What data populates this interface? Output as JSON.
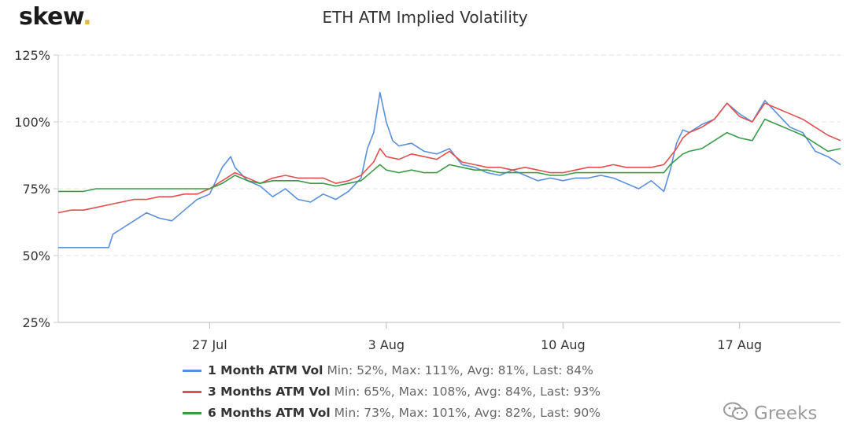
{
  "brand": {
    "logo_text": "skew",
    "logo_dot": "."
  },
  "watermark": {
    "text": "Greeks",
    "icon": "wechat-icon"
  },
  "chart_data": {
    "type": "line",
    "title": "ETH ATM Implied Volatility",
    "xlabel": "",
    "ylabel": "",
    "x_tick_labels": [
      "27 Jul",
      "3 Aug",
      "10 Aug",
      "17 Aug"
    ],
    "x_ticks": [
      "2020-07-27",
      "2020-08-03",
      "2020-08-10",
      "2020-08-17"
    ],
    "x_range": [
      "2020-07-21",
      "2020-08-21"
    ],
    "y_tick_labels": [
      "125%",
      "100%",
      "75%",
      "50%",
      "25%"
    ],
    "y_ticks": [
      125,
      100,
      75,
      50,
      25
    ],
    "ylim": [
      25,
      125
    ],
    "grid": "horizontal dashed",
    "legend_position": "bottom",
    "series": [
      {
        "name": "1 Month ATM Vol",
        "stats": "Min: 52%, Max: 111%, Avg: 81%, Last: 84%",
        "color": "#5b8fd9",
        "points": [
          [
            "2020-07-21",
            53
          ],
          [
            "2020-07-21T12:00",
            53
          ],
          [
            "2020-07-22",
            53
          ],
          [
            "2020-07-22T12:00",
            53
          ],
          [
            "2020-07-23",
            53
          ],
          [
            "2020-07-23T04:00",
            58
          ],
          [
            "2020-07-23T12:00",
            60
          ],
          [
            "2020-07-24",
            63
          ],
          [
            "2020-07-24T12:00",
            66
          ],
          [
            "2020-07-25",
            64
          ],
          [
            "2020-07-25T12:00",
            63
          ],
          [
            "2020-07-26",
            67
          ],
          [
            "2020-07-26T12:00",
            71
          ],
          [
            "2020-07-27",
            73
          ],
          [
            "2020-07-27T06:00",
            78
          ],
          [
            "2020-07-27T12:00",
            83
          ],
          [
            "2020-07-27T20:00",
            87
          ],
          [
            "2020-07-28",
            83
          ],
          [
            "2020-07-28T12:00",
            78
          ],
          [
            "2020-07-29",
            76
          ],
          [
            "2020-07-29T12:00",
            72
          ],
          [
            "2020-07-30",
            75
          ],
          [
            "2020-07-30T12:00",
            71
          ],
          [
            "2020-07-31",
            70
          ],
          [
            "2020-07-31T12:00",
            73
          ],
          [
            "2020-08-01",
            71
          ],
          [
            "2020-08-01T12:00",
            74
          ],
          [
            "2020-08-02",
            79
          ],
          [
            "2020-08-02T06:00",
            90
          ],
          [
            "2020-08-02T12:00",
            96
          ],
          [
            "2020-08-02T18:00",
            111
          ],
          [
            "2020-08-03",
            100
          ],
          [
            "2020-08-03T06:00",
            93
          ],
          [
            "2020-08-03T12:00",
            91
          ],
          [
            "2020-08-04",
            92
          ],
          [
            "2020-08-04T12:00",
            89
          ],
          [
            "2020-08-05",
            88
          ],
          [
            "2020-08-05T12:00",
            90
          ],
          [
            "2020-08-06",
            84
          ],
          [
            "2020-08-06T12:00",
            83
          ],
          [
            "2020-08-07",
            81
          ],
          [
            "2020-08-07T12:00",
            80
          ],
          [
            "2020-08-08",
            82
          ],
          [
            "2020-08-08T12:00",
            80
          ],
          [
            "2020-08-09",
            78
          ],
          [
            "2020-08-09T12:00",
            79
          ],
          [
            "2020-08-10",
            78
          ],
          [
            "2020-08-10T12:00",
            79
          ],
          [
            "2020-08-11",
            79
          ],
          [
            "2020-08-11T12:00",
            80
          ],
          [
            "2020-08-12",
            79
          ],
          [
            "2020-08-12T12:00",
            77
          ],
          [
            "2020-08-13",
            75
          ],
          [
            "2020-08-13T12:00",
            78
          ],
          [
            "2020-08-14",
            74
          ],
          [
            "2020-08-14T06:00",
            82
          ],
          [
            "2020-08-14T12:00",
            92
          ],
          [
            "2020-08-14T18:00",
            97
          ],
          [
            "2020-08-15",
            96
          ],
          [
            "2020-08-15T12:00",
            99
          ],
          [
            "2020-08-16",
            101
          ],
          [
            "2020-08-16T12:00",
            107
          ],
          [
            "2020-08-17",
            103
          ],
          [
            "2020-08-17T12:00",
            100
          ],
          [
            "2020-08-18",
            108
          ],
          [
            "2020-08-18T12:00",
            103
          ],
          [
            "2020-08-19",
            98
          ],
          [
            "2020-08-19T12:00",
            96
          ],
          [
            "2020-08-20",
            89
          ],
          [
            "2020-08-20T12:00",
            87
          ],
          [
            "2020-08-21",
            84
          ]
        ]
      },
      {
        "name": "3 Months ATM Vol",
        "stats": "Min: 65%, Max: 108%, Avg: 84%, Last: 93%",
        "color": "#e0504f",
        "points": [
          [
            "2020-07-21",
            66
          ],
          [
            "2020-07-21T12:00",
            67
          ],
          [
            "2020-07-22",
            67
          ],
          [
            "2020-07-22T12:00",
            68
          ],
          [
            "2020-07-23",
            69
          ],
          [
            "2020-07-23T12:00",
            70
          ],
          [
            "2020-07-24",
            71
          ],
          [
            "2020-07-24T12:00",
            71
          ],
          [
            "2020-07-25",
            72
          ],
          [
            "2020-07-25T12:00",
            72
          ],
          [
            "2020-07-26",
            73
          ],
          [
            "2020-07-26T12:00",
            73
          ],
          [
            "2020-07-27",
            75
          ],
          [
            "2020-07-27T12:00",
            78
          ],
          [
            "2020-07-28",
            81
          ],
          [
            "2020-07-28T12:00",
            79
          ],
          [
            "2020-07-29",
            77
          ],
          [
            "2020-07-29T12:00",
            79
          ],
          [
            "2020-07-30",
            80
          ],
          [
            "2020-07-30T12:00",
            79
          ],
          [
            "2020-07-31",
            79
          ],
          [
            "2020-07-31T12:00",
            79
          ],
          [
            "2020-08-01",
            77
          ],
          [
            "2020-08-01T12:00",
            78
          ],
          [
            "2020-08-02",
            80
          ],
          [
            "2020-08-02T12:00",
            85
          ],
          [
            "2020-08-02T18:00",
            90
          ],
          [
            "2020-08-03",
            87
          ],
          [
            "2020-08-03T12:00",
            86
          ],
          [
            "2020-08-04",
            88
          ],
          [
            "2020-08-04T12:00",
            87
          ],
          [
            "2020-08-05",
            86
          ],
          [
            "2020-08-05T12:00",
            89
          ],
          [
            "2020-08-06",
            85
          ],
          [
            "2020-08-06T12:00",
            84
          ],
          [
            "2020-08-07",
            83
          ],
          [
            "2020-08-07T12:00",
            83
          ],
          [
            "2020-08-08",
            82
          ],
          [
            "2020-08-08T12:00",
            83
          ],
          [
            "2020-08-09",
            82
          ],
          [
            "2020-08-09T12:00",
            81
          ],
          [
            "2020-08-10",
            81
          ],
          [
            "2020-08-10T12:00",
            82
          ],
          [
            "2020-08-11",
            83
          ],
          [
            "2020-08-11T12:00",
            83
          ],
          [
            "2020-08-12",
            84
          ],
          [
            "2020-08-12T12:00",
            83
          ],
          [
            "2020-08-13",
            83
          ],
          [
            "2020-08-13T12:00",
            83
          ],
          [
            "2020-08-14",
            84
          ],
          [
            "2020-08-14T06:00",
            87
          ],
          [
            "2020-08-14T12:00",
            90
          ],
          [
            "2020-08-14T18:00",
            94
          ],
          [
            "2020-08-15",
            96
          ],
          [
            "2020-08-15T12:00",
            98
          ],
          [
            "2020-08-16",
            101
          ],
          [
            "2020-08-16T12:00",
            107
          ],
          [
            "2020-08-17",
            102
          ],
          [
            "2020-08-17T12:00",
            100
          ],
          [
            "2020-08-18",
            107
          ],
          [
            "2020-08-18T12:00",
            105
          ],
          [
            "2020-08-19",
            103
          ],
          [
            "2020-08-19T12:00",
            101
          ],
          [
            "2020-08-20",
            98
          ],
          [
            "2020-08-20T12:00",
            95
          ],
          [
            "2020-08-21",
            93
          ]
        ]
      },
      {
        "name": "6 Months ATM Vol",
        "stats": "Min: 73%, Max: 101%, Avg: 82%, Last: 90%",
        "color": "#3a9a47",
        "points": [
          [
            "2020-07-21",
            74
          ],
          [
            "2020-07-21T12:00",
            74
          ],
          [
            "2020-07-22",
            74
          ],
          [
            "2020-07-22T12:00",
            75
          ],
          [
            "2020-07-23",
            75
          ],
          [
            "2020-07-23T12:00",
            75
          ],
          [
            "2020-07-24",
            75
          ],
          [
            "2020-07-24T12:00",
            75
          ],
          [
            "2020-07-25",
            75
          ],
          [
            "2020-07-25T12:00",
            75
          ],
          [
            "2020-07-26",
            75
          ],
          [
            "2020-07-26T12:00",
            75
          ],
          [
            "2020-07-27",
            75
          ],
          [
            "2020-07-27T12:00",
            77
          ],
          [
            "2020-07-28",
            80
          ],
          [
            "2020-07-28T12:00",
            78
          ],
          [
            "2020-07-29",
            77
          ],
          [
            "2020-07-29T12:00",
            78
          ],
          [
            "2020-07-30",
            78
          ],
          [
            "2020-07-30T12:00",
            78
          ],
          [
            "2020-07-31",
            77
          ],
          [
            "2020-07-31T12:00",
            77
          ],
          [
            "2020-08-01",
            76
          ],
          [
            "2020-08-01T12:00",
            77
          ],
          [
            "2020-08-02",
            78
          ],
          [
            "2020-08-02T12:00",
            82
          ],
          [
            "2020-08-02T18:00",
            84
          ],
          [
            "2020-08-03",
            82
          ],
          [
            "2020-08-03T12:00",
            81
          ],
          [
            "2020-08-04",
            82
          ],
          [
            "2020-08-04T12:00",
            81
          ],
          [
            "2020-08-05",
            81
          ],
          [
            "2020-08-05T12:00",
            84
          ],
          [
            "2020-08-06",
            83
          ],
          [
            "2020-08-06T12:00",
            82
          ],
          [
            "2020-08-07",
            82
          ],
          [
            "2020-08-07T12:00",
            81
          ],
          [
            "2020-08-08",
            81
          ],
          [
            "2020-08-08T12:00",
            81
          ],
          [
            "2020-08-09",
            81
          ],
          [
            "2020-08-09T12:00",
            80
          ],
          [
            "2020-08-10",
            80
          ],
          [
            "2020-08-10T12:00",
            81
          ],
          [
            "2020-08-11",
            81
          ],
          [
            "2020-08-11T12:00",
            81
          ],
          [
            "2020-08-12",
            81
          ],
          [
            "2020-08-12T12:00",
            81
          ],
          [
            "2020-08-13",
            81
          ],
          [
            "2020-08-13T12:00",
            81
          ],
          [
            "2020-08-14",
            81
          ],
          [
            "2020-08-14T06:00",
            84
          ],
          [
            "2020-08-14T12:00",
            86
          ],
          [
            "2020-08-14T18:00",
            88
          ],
          [
            "2020-08-15",
            89
          ],
          [
            "2020-08-15T12:00",
            90
          ],
          [
            "2020-08-16",
            93
          ],
          [
            "2020-08-16T12:00",
            96
          ],
          [
            "2020-08-17",
            94
          ],
          [
            "2020-08-17T12:00",
            93
          ],
          [
            "2020-08-18",
            101
          ],
          [
            "2020-08-18T12:00",
            99
          ],
          [
            "2020-08-19",
            97
          ],
          [
            "2020-08-19T12:00",
            95
          ],
          [
            "2020-08-20",
            92
          ],
          [
            "2020-08-20T12:00",
            89
          ],
          [
            "2020-08-21",
            90
          ]
        ]
      }
    ]
  }
}
